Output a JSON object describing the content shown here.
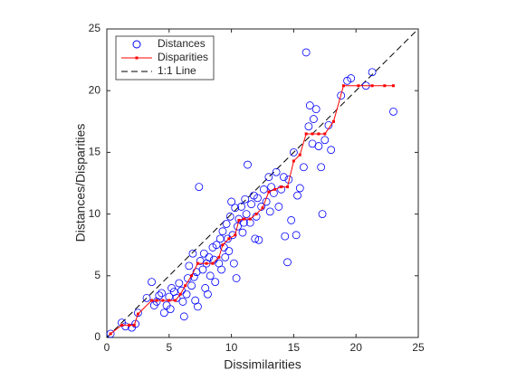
{
  "chart_data": {
    "type": "scatter",
    "xlabel": "Dissimilarities",
    "ylabel": "Distances/Disparities",
    "xlim": [
      0,
      25
    ],
    "ylim": [
      0,
      25
    ],
    "xticks": [
      0,
      5,
      10,
      15,
      20,
      25
    ],
    "yticks": [
      0,
      5,
      10,
      15,
      20,
      25
    ],
    "grid": false,
    "legend": "northwest",
    "series": [
      {
        "name": "Distances",
        "color": "#0000ff",
        "mode": "markers",
        "x": [
          0.3,
          1.2,
          1.5,
          2.0,
          2.3,
          2.5,
          3.2,
          3.6,
          3.8,
          4.0,
          4.2,
          4.4,
          4.6,
          4.8,
          5.0,
          5.1,
          5.2,
          5.4,
          5.6,
          5.8,
          6.0,
          6.1,
          6.2,
          6.4,
          6.5,
          6.6,
          6.8,
          6.9,
          7.0,
          7.1,
          7.2,
          7.3,
          7.4,
          7.5,
          7.7,
          7.8,
          7.9,
          8.0,
          8.1,
          8.2,
          8.3,
          8.5,
          8.6,
          8.7,
          8.8,
          9.0,
          9.1,
          9.2,
          9.3,
          9.4,
          9.5,
          9.6,
          9.7,
          9.8,
          9.9,
          10.0,
          10.1,
          10.2,
          10.3,
          10.4,
          10.5,
          10.6,
          10.8,
          10.9,
          11.0,
          11.1,
          11.2,
          11.3,
          11.5,
          11.6,
          11.8,
          11.9,
          12.0,
          12.1,
          12.2,
          12.4,
          12.6,
          12.8,
          13.0,
          13.1,
          13.2,
          13.4,
          13.6,
          13.8,
          14.0,
          14.2,
          14.3,
          14.5,
          14.6,
          14.8,
          15.0,
          15.2,
          15.3,
          15.5,
          15.8,
          16.0,
          16.2,
          16.3,
          16.5,
          16.6,
          16.8,
          17.0,
          17.2,
          17.3,
          17.5,
          17.8,
          18.0,
          18.8,
          19.3,
          19.6,
          20.8,
          21.3,
          23.0
        ],
        "values": [
          0.3,
          1.2,
          0.9,
          0.8,
          1.1,
          2.0,
          3.2,
          4.5,
          2.6,
          2.9,
          3.4,
          3.6,
          2.0,
          2.6,
          3.3,
          2.3,
          4.0,
          3.7,
          3.2,
          4.4,
          3.8,
          2.9,
          1.7,
          3.5,
          4.8,
          5.8,
          4.2,
          6.8,
          4.9,
          3.0,
          5.3,
          2.5,
          12.2,
          6.2,
          5.5,
          6.8,
          4.0,
          6.0,
          3.5,
          6.5,
          5.0,
          7.3,
          6.3,
          4.5,
          7.5,
          6.0,
          8.0,
          5.5,
          8.6,
          7.3,
          6.5,
          9.2,
          8.0,
          7.0,
          9.8,
          11.0,
          8.3,
          6.0,
          10.5,
          4.8,
          9.0,
          9.6,
          10.6,
          8.5,
          9.3,
          11.2,
          10.0,
          14.0,
          9.3,
          10.8,
          11.5,
          8.0,
          9.8,
          11.3,
          7.9,
          10.6,
          12.0,
          11.0,
          13.0,
          10.2,
          12.2,
          11.7,
          13.4,
          10.6,
          12.0,
          13.0,
          8.2,
          6.1,
          12.8,
          9.5,
          15.0,
          8.3,
          11.5,
          12.1,
          13.8,
          23.1,
          17.1,
          18.8,
          15.7,
          17.7,
          18.5,
          15.5,
          13.8,
          10.0,
          16.0,
          17.2,
          15.2,
          19.6,
          20.8,
          21.0,
          20.4,
          21.5,
          18.3
        ]
      },
      {
        "name": "Disparities",
        "color": "#ff0000",
        "mode": "lines+markers",
        "x": [
          0.3,
          1.2,
          1.8,
          2.2,
          2.5,
          3.6,
          4.0,
          4.5,
          5.0,
          5.5,
          5.9,
          6.3,
          6.8,
          7.3,
          8.0,
          8.5,
          9.0,
          9.3,
          9.8,
          10.3,
          10.6,
          11.0,
          11.5,
          12.0,
          12.5,
          13.0,
          13.5,
          14.0,
          14.5,
          15.0,
          15.5,
          16.0,
          16.5,
          17.0,
          17.5,
          18.2,
          19.0,
          20.2,
          21.3,
          22.3,
          23.0
        ],
        "values": [
          0.3,
          1.0,
          1.0,
          1.0,
          1.9,
          3.0,
          3.0,
          3.0,
          3.0,
          3.0,
          3.5,
          4.2,
          5.0,
          6.0,
          6.0,
          6.0,
          6.5,
          7.5,
          8.0,
          8.3,
          9.5,
          9.6,
          9.6,
          10.0,
          10.5,
          11.8,
          12.0,
          12.2,
          12.2,
          14.3,
          14.8,
          16.5,
          16.5,
          16.5,
          16.5,
          17.5,
          20.4,
          20.4,
          20.4,
          20.4,
          20.4
        ]
      },
      {
        "name": "1:1 Line",
        "color": "#000000",
        "mode": "dashed-line",
        "x": [
          0,
          25
        ],
        "values": [
          0,
          25
        ]
      }
    ]
  }
}
